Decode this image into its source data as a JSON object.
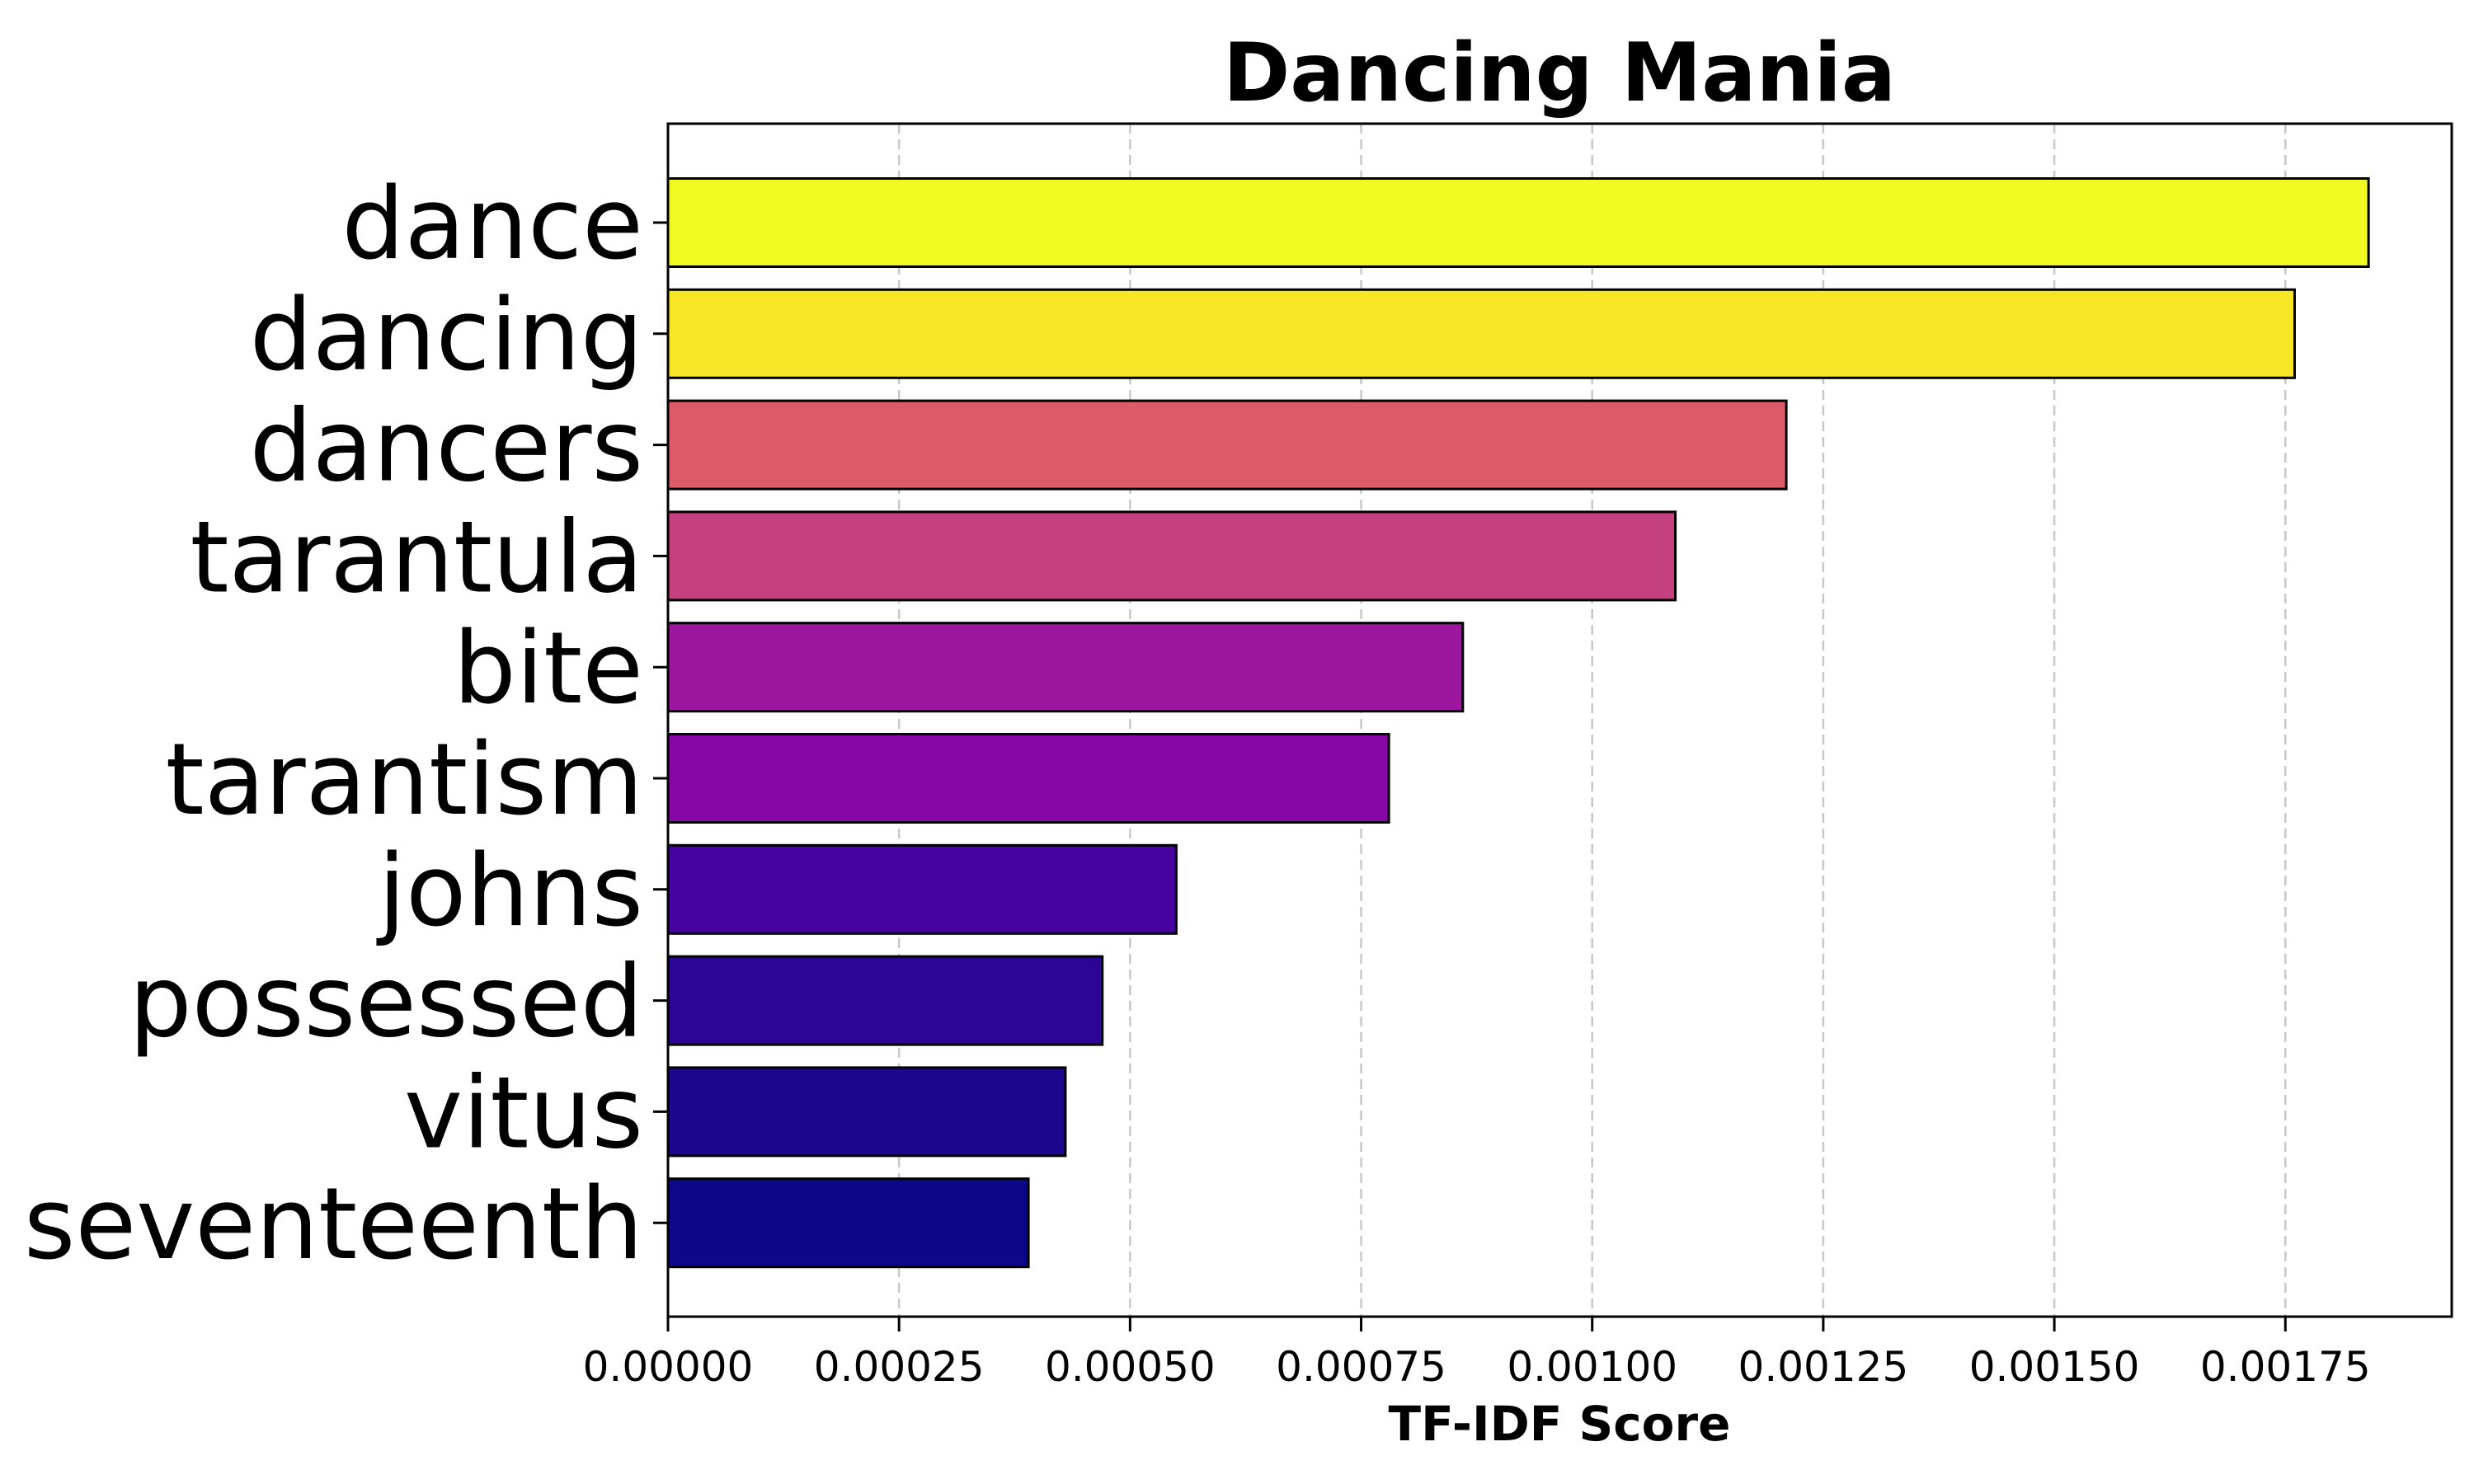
{
  "chart_data": {
    "type": "bar",
    "orientation": "horizontal",
    "title": "Dancing Mania",
    "xlabel": "TF-IDF Score",
    "ylabel": "",
    "xlim": [
      0,
      0.00193
    ],
    "grid": "x-axis, dashed",
    "categories": [
      "dance",
      "dancing",
      "dancers",
      "tarantula",
      "bite",
      "tarantism",
      "johns",
      "possessed",
      "vitus",
      "seventeenth"
    ],
    "values": [
      0.00184,
      0.00176,
      0.00121,
      0.00109,
      0.00086,
      0.00078,
      0.00055,
      0.00047,
      0.00043,
      0.00039
    ],
    "colors": [
      "#f0f921",
      "#f6e626",
      "#db5c68",
      "#c5407e",
      "#9c179e",
      "#8606a6",
      "#46039f",
      "#2c0594",
      "#1d068e",
      "#0d0887"
    ],
    "xticks": [
      0,
      0.00025,
      0.0005,
      0.00075,
      0.001,
      0.00125,
      0.0015,
      0.00175
    ],
    "xtick_labels": [
      "0.00000",
      "0.00025",
      "0.00050",
      "0.00075",
      "0.00100",
      "0.00125",
      "0.00150",
      "0.00175"
    ]
  }
}
